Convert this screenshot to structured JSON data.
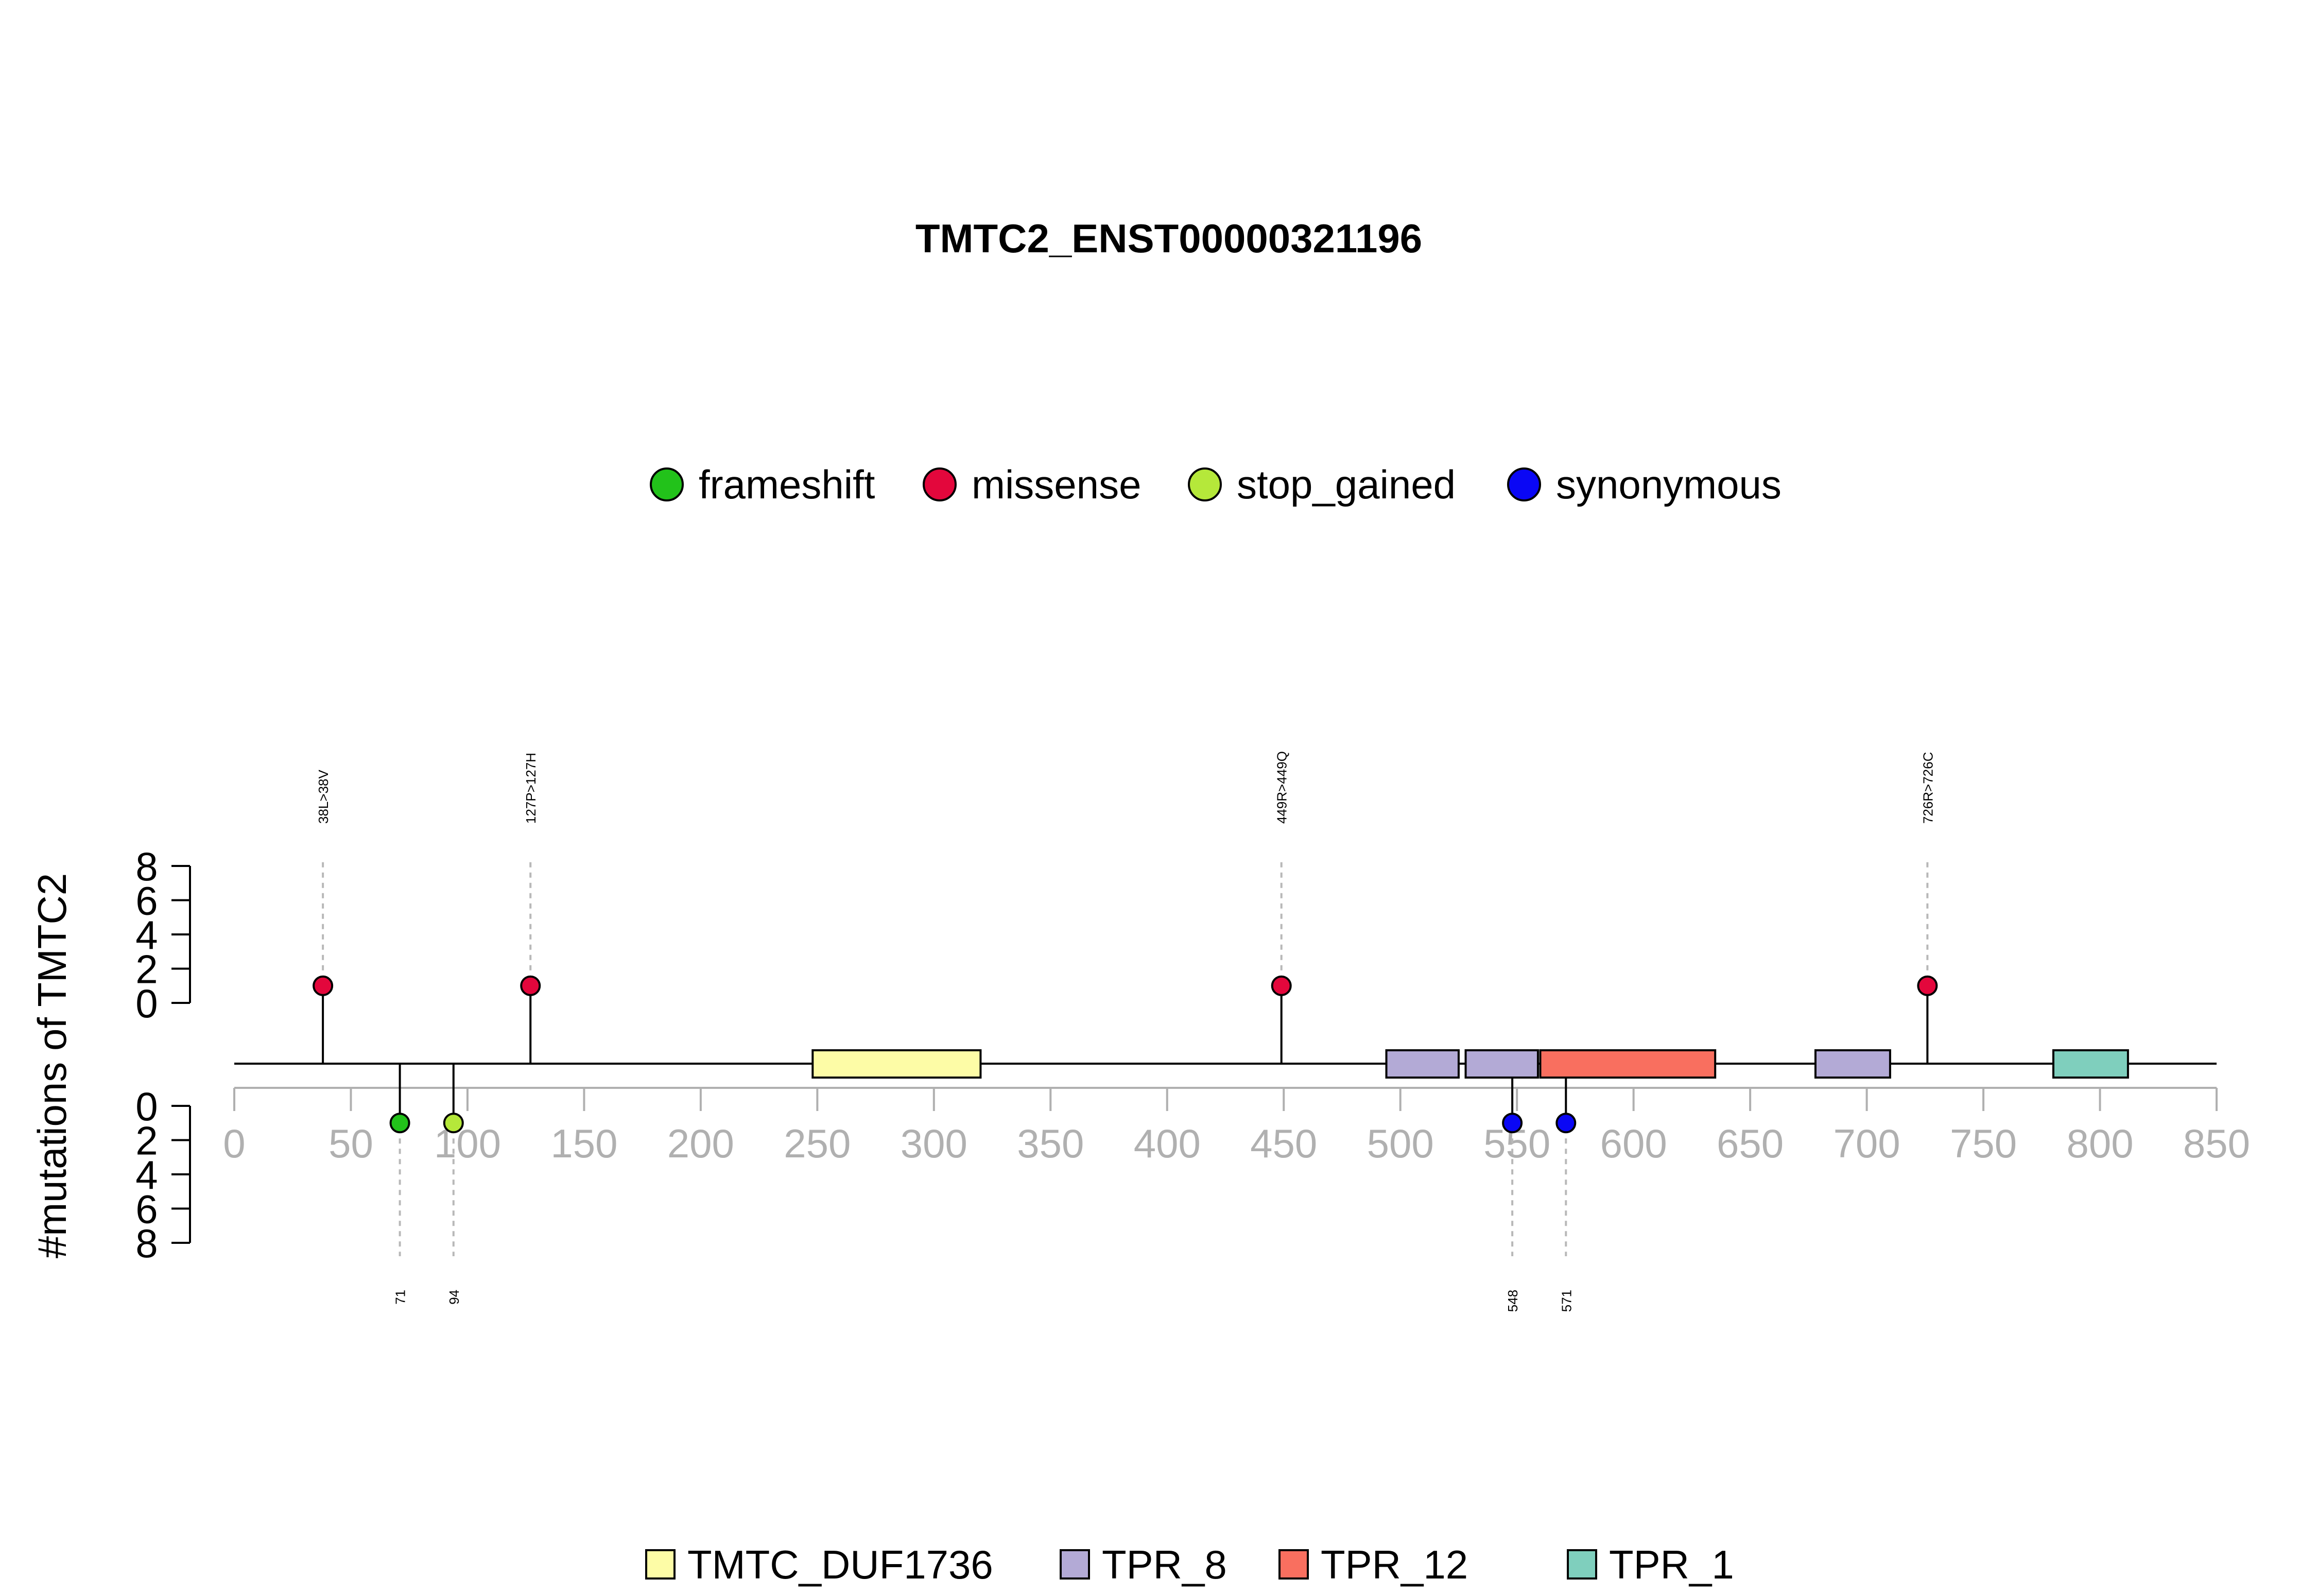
{
  "chart_data": {
    "type": "lollipop",
    "title": "TMTC2_ENST00000321196",
    "ylabel": "#mutations of TMTC2",
    "xlim": [
      0,
      850
    ],
    "xticks": [
      "0",
      "50",
      "100",
      "150",
      "200",
      "250",
      "300",
      "350",
      "400",
      "450",
      "500",
      "550",
      "600",
      "650",
      "700",
      "750",
      "800",
      "850"
    ],
    "ylim_top": [
      0,
      8
    ],
    "ylim_bottom": [
      0,
      8
    ],
    "yticks_top": [
      "0",
      "2",
      "4",
      "6",
      "8"
    ],
    "yticks_bottom": [
      "0",
      "2",
      "4",
      "6",
      "8"
    ],
    "mutation_legend": [
      {
        "label": "frameshift",
        "color": "#22c21a"
      },
      {
        "label": "missense",
        "color": "#e3073c"
      },
      {
        "label": "stop_gained",
        "color": "#b5e83a"
      },
      {
        "label": "synonymous",
        "color": "#0a07f5"
      }
    ],
    "domain_legend": [
      {
        "label": "TMTC_DUF1736",
        "color": "#fdfca6"
      },
      {
        "label": "TPR_8",
        "color": "#b3aad6"
      },
      {
        "label": "TPR_12",
        "color": "#f96f5f"
      },
      {
        "label": "TPR_1",
        "color": "#7fcfbd"
      }
    ],
    "domains": [
      {
        "name": "TMTC_DUF1736",
        "start": 248,
        "end": 320
      },
      {
        "name": "TPR_8",
        "start": 494,
        "end": 525
      },
      {
        "name": "TPR_8",
        "start": 528,
        "end": 559
      },
      {
        "name": "TPR_12",
        "start": 560,
        "end": 635
      },
      {
        "name": "TPR_8",
        "start": 678,
        "end": 710
      },
      {
        "name": "TPR_1",
        "start": 780,
        "end": 812
      }
    ],
    "mutations_top": [
      {
        "position": 38,
        "count": 1,
        "type": "missense",
        "label": "38L>38V"
      },
      {
        "position": 127,
        "count": 1,
        "type": "missense",
        "label": "127P>127H"
      },
      {
        "position": 449,
        "count": 1,
        "type": "missense",
        "label": "449R>449Q"
      },
      {
        "position": 726,
        "count": 1,
        "type": "missense",
        "label": "726R>726C"
      }
    ],
    "mutations_bottom": [
      {
        "position": 71,
        "count": 1,
        "type": "frameshift",
        "label": "71"
      },
      {
        "position": 94,
        "count": 1,
        "type": "stop_gained",
        "label": "94"
      },
      {
        "position": 548,
        "count": 1,
        "type": "synonymous",
        "label": "548"
      },
      {
        "position": 571,
        "count": 1,
        "type": "synonymous",
        "label": "571"
      }
    ]
  }
}
